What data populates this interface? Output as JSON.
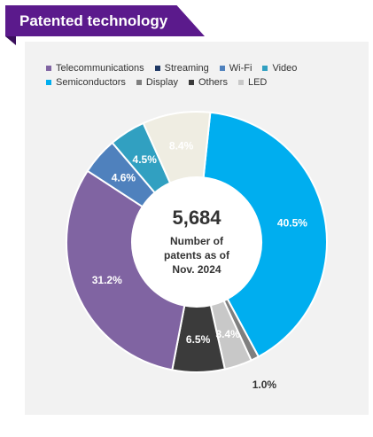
{
  "header": {
    "title": "Patented technology"
  },
  "center": {
    "value": "5,684",
    "line1": "Number of",
    "line2": "patents as of",
    "line3": "Nov. 2024"
  },
  "chart_data": {
    "type": "pie",
    "donut": true,
    "legend_position": "top",
    "total": 5684,
    "series": [
      {
        "name": "Semiconductors",
        "value": 40.5,
        "label": "40.5%",
        "color": "#00aeef"
      },
      {
        "name": "Display",
        "value": 1.0,
        "label": "1.0%",
        "color": "#7f7f7f"
      },
      {
        "name": "LED",
        "value": 3.4,
        "label": "3.4%",
        "color": "#c8c8c8"
      },
      {
        "name": "Others",
        "value": 6.5,
        "label": "6.5%",
        "color": "#3b3b3b"
      },
      {
        "name": "Telecommunications",
        "value": 31.2,
        "label": "31.2%",
        "color": "#8064a2"
      },
      {
        "name": "Streaming",
        "value": 0.0,
        "label": "",
        "color": "#1f3864"
      },
      {
        "name": "Wi-Fi",
        "value": 4.6,
        "label": "4.6%",
        "color": "#4f81bd"
      },
      {
        "name": "Video",
        "value": 4.5,
        "label": "4.5%",
        "color": "#31a0c1"
      },
      {
        "name": "",
        "value": 8.4,
        "label": "8.4%",
        "color": "#efede2"
      }
    ],
    "legend": {
      "rows": [
        [
          {
            "label": "Telecommunications",
            "color": "#8064a2"
          },
          {
            "label": "Streaming",
            "color": "#1f3864"
          },
          {
            "label": "Wi-Fi",
            "color": "#4f81bd"
          },
          {
            "label": "Video",
            "color": "#31a0c1"
          }
        ],
        [
          {
            "label": "Semiconductors",
            "color": "#00aeef"
          },
          {
            "label": "Display",
            "color": "#7f7f7f"
          },
          {
            "label": "Others",
            "color": "#3b3b3b"
          },
          {
            "label": "LED",
            "color": "#c8c8c8"
          }
        ]
      ]
    }
  }
}
